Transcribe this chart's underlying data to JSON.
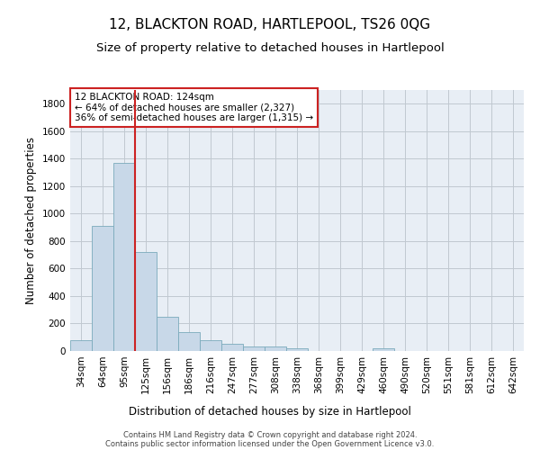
{
  "title": "12, BLACKTON ROAD, HARTLEPOOL, TS26 0QG",
  "subtitle": "Size of property relative to detached houses in Hartlepool",
  "xlabel": "Distribution of detached houses by size in Hartlepool",
  "ylabel": "Number of detached properties",
  "footer_line1": "Contains HM Land Registry data © Crown copyright and database right 2024.",
  "footer_line2": "Contains public sector information licensed under the Open Government Licence v3.0.",
  "categories": [
    "34sqm",
    "64sqm",
    "95sqm",
    "125sqm",
    "156sqm",
    "186sqm",
    "216sqm",
    "247sqm",
    "277sqm",
    "308sqm",
    "338sqm",
    "368sqm",
    "399sqm",
    "429sqm",
    "460sqm",
    "490sqm",
    "520sqm",
    "551sqm",
    "581sqm",
    "612sqm",
    "642sqm"
  ],
  "values": [
    80,
    910,
    1370,
    720,
    250,
    140,
    80,
    55,
    35,
    30,
    20,
    0,
    0,
    0,
    20,
    0,
    0,
    0,
    0,
    0,
    0
  ],
  "bar_color": "#c8d8e8",
  "bar_edge_color": "#7aaabb",
  "vline_color": "#cc2222",
  "vline_x_index": 2.5,
  "annotation_text": "12 BLACKTON ROAD: 124sqm\n← 64% of detached houses are smaller (2,327)\n36% of semi-detached houses are larger (1,315) →",
  "annotation_box_color": "#ffffff",
  "annotation_box_edge_color": "#cc2222",
  "ylim": [
    0,
    1900
  ],
  "yticks": [
    0,
    200,
    400,
    600,
    800,
    1000,
    1200,
    1400,
    1600,
    1800
  ],
  "bg_color": "#ffffff",
  "plot_bg_color": "#e8eef5",
  "grid_color": "#c0c8d0",
  "title_fontsize": 11,
  "subtitle_fontsize": 9.5,
  "axis_label_fontsize": 8.5,
  "tick_fontsize": 7.5,
  "annotation_fontsize": 7.5,
  "footer_fontsize": 6
}
